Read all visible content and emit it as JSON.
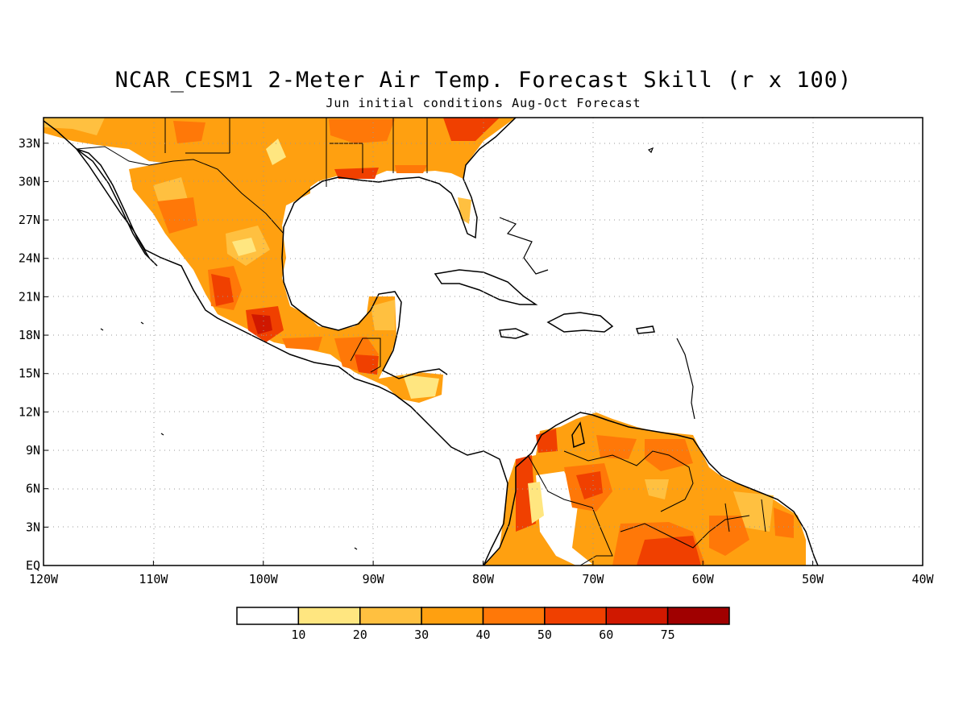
{
  "title": "NCAR_CESM1 2-Meter Air Temp. Forecast Skill (r x 100)",
  "subtitle": "Jun initial conditions  Aug-Oct Forecast",
  "map": {
    "lon_range": [
      -120,
      -40
    ],
    "lat_range": [
      0,
      35
    ],
    "lat_ticks": [
      {
        "value": 33,
        "label": "33N"
      },
      {
        "value": 30,
        "label": "30N"
      },
      {
        "value": 27,
        "label": "27N"
      },
      {
        "value": 24,
        "label": "24N"
      },
      {
        "value": 21,
        "label": "21N"
      },
      {
        "value": 18,
        "label": "18N"
      },
      {
        "value": 15,
        "label": "15N"
      },
      {
        "value": 12,
        "label": "12N"
      },
      {
        "value": 9,
        "label": "9N"
      },
      {
        "value": 6,
        "label": "6N"
      },
      {
        "value": 3,
        "label": "3N"
      },
      {
        "value": 0,
        "label": "EQ"
      }
    ],
    "lon_ticks": [
      {
        "value": -120,
        "label": "120W"
      },
      {
        "value": -110,
        "label": "110W"
      },
      {
        "value": -100,
        "label": "100W"
      },
      {
        "value": -90,
        "label": "90W"
      },
      {
        "value": -80,
        "label": "80W"
      },
      {
        "value": -70,
        "label": "70W"
      },
      {
        "value": -60,
        "label": "60W"
      },
      {
        "value": -50,
        "label": "50W"
      },
      {
        "value": -40,
        "label": "40W"
      }
    ],
    "grid": "dotted",
    "coastline_color": "#000000"
  },
  "legend": {
    "colors": [
      "#ffffff",
      "#ffe680",
      "#ffc040",
      "#ffa010",
      "#ff7808",
      "#f04000",
      "#d01800",
      "#a00000"
    ],
    "labels": [
      "10",
      "20",
      "30",
      "40",
      "50",
      "60",
      "75"
    ]
  }
}
